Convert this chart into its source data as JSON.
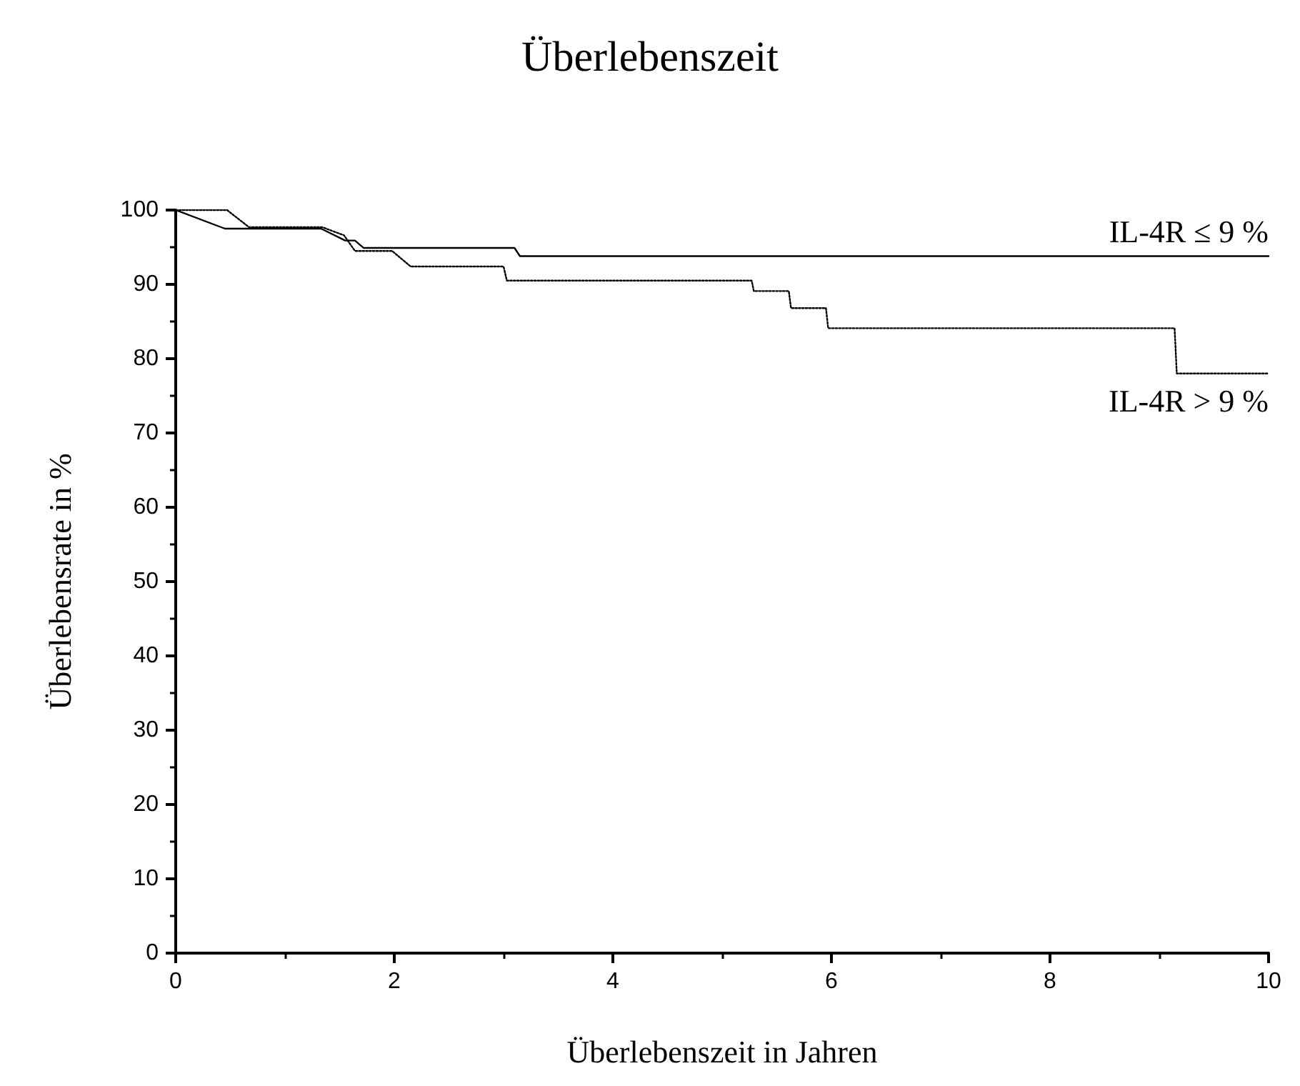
{
  "chart_data": {
    "type": "line",
    "title": "Überlebenszeit",
    "xlabel": "Überlebenszeit in Jahren",
    "ylabel": "Überlebensrate in %",
    "xlim": [
      0,
      10
    ],
    "xticks": [
      0,
      2,
      4,
      6,
      8,
      10
    ],
    "ylim": [
      0,
      100
    ],
    "yticks": [
      0,
      10,
      20,
      30,
      40,
      50,
      60,
      70,
      80,
      90,
      100
    ],
    "grid": false,
    "legend": false,
    "marker": "none",
    "series": [
      {
        "name": "IL-4R ≤ 9 %",
        "color": "#000000",
        "line_style": "solid",
        "x": [
          0,
          0.45,
          1.33,
          1.55,
          1.64,
          1.72,
          3.1,
          3.15,
          10
        ],
        "values": [
          100,
          97.5,
          97.5,
          95.9,
          95.9,
          94.9,
          94.9,
          93.8,
          93.8
        ]
      },
      {
        "name": "IL-4R > 9 %",
        "color": "#000000",
        "line_style": "dotted",
        "x": [
          0,
          0.47,
          0.67,
          1.34,
          1.54,
          1.64,
          1.98,
          2.15,
          3.0,
          3.03,
          5.27,
          5.29,
          5.61,
          5.63,
          5.95,
          5.97,
          9.14,
          9.16,
          10
        ],
        "values": [
          100,
          100,
          97.7,
          97.7,
          96.6,
          94.5,
          94.5,
          92.4,
          92.4,
          90.5,
          90.5,
          89.1,
          89.1,
          86.8,
          86.8,
          84.1,
          84.1,
          78.0,
          78.0
        ]
      }
    ]
  }
}
